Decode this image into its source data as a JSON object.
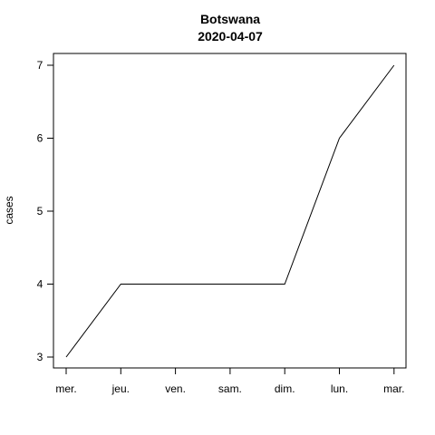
{
  "chart_data": {
    "type": "line",
    "title": "Botswana",
    "subtitle": "2020-04-07",
    "xlabel": "",
    "ylabel": "cases",
    "categories": [
      "mer.",
      "jeu.",
      "ven.",
      "sam.",
      "dim.",
      "lun.",
      "mar."
    ],
    "series": [
      {
        "values": [
          3,
          4,
          4,
          4,
          4,
          6,
          7
        ]
      }
    ],
    "yticks": [
      3,
      4,
      5,
      6,
      7
    ],
    "ylim": [
      3,
      7
    ],
    "grid": false,
    "line_color": "#000000"
  }
}
